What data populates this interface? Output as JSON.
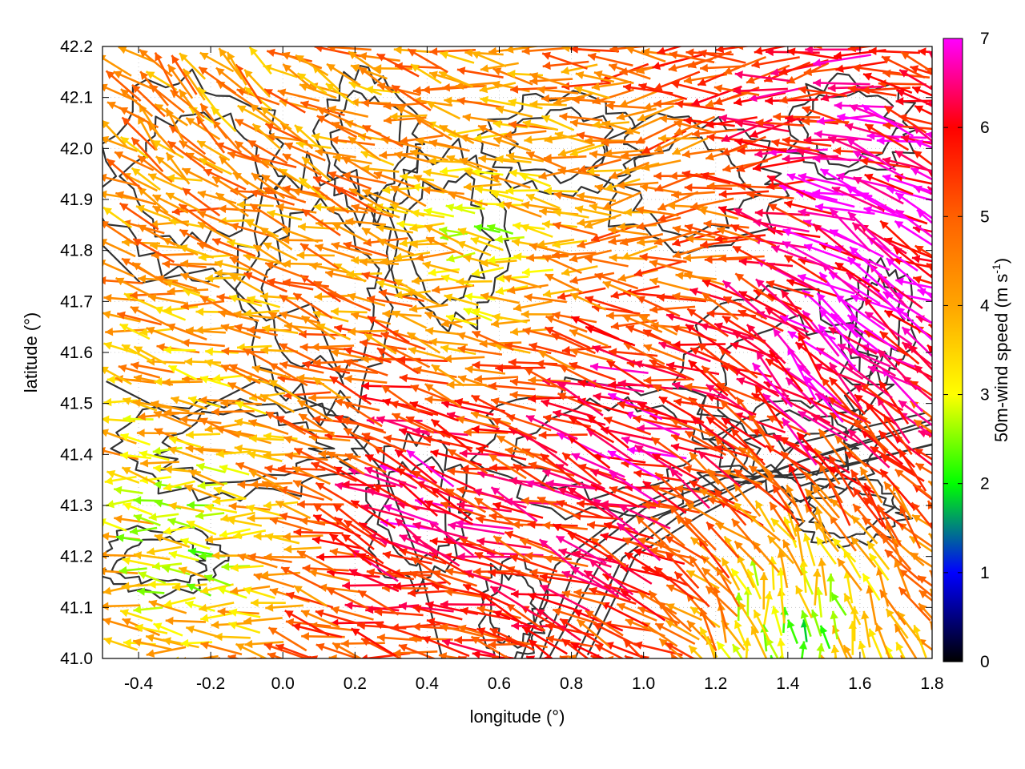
{
  "chart_data": {
    "type": "vector-field",
    "xlabel": "longitude (°)",
    "ylabel": "latitude (°)",
    "xlim": [
      -0.5,
      1.8
    ],
    "ylim": [
      41.0,
      42.2
    ],
    "xticks": [
      "-0.4",
      "-0.2",
      "0.0",
      "0.2",
      "0.4",
      "0.6",
      "0.8",
      "1.0",
      "1.2",
      "1.4",
      "1.6",
      "1.8"
    ],
    "xtick_values": [
      -0.4,
      -0.2,
      0.0,
      0.2,
      0.4,
      0.6,
      0.8,
      1.0,
      1.2,
      1.4,
      1.6,
      1.8
    ],
    "yticks": [
      "41.0",
      "41.1",
      "41.2",
      "41.3",
      "41.4",
      "41.5",
      "41.6",
      "41.7",
      "41.8",
      "41.9",
      "42.0",
      "42.1",
      "42.2"
    ],
    "ytick_values": [
      41.0,
      41.1,
      41.2,
      41.3,
      41.4,
      41.5,
      41.6,
      41.7,
      41.8,
      41.9,
      42.0,
      42.1,
      42.2
    ],
    "grid": true,
    "colorbar": {
      "label": "50m-wind speed (m s",
      "label_sup": "-1",
      "label_end": ")",
      "range": [
        0,
        7
      ],
      "ticks": [
        "0",
        "1",
        "2",
        "3",
        "4",
        "5",
        "6",
        "7"
      ],
      "tick_values": [
        0,
        1,
        2,
        3,
        4,
        5,
        6,
        7
      ],
      "colormap": [
        {
          "value": 0,
          "color": "#000000"
        },
        {
          "value": 1,
          "color": "#0000ff"
        },
        {
          "value": 1.5,
          "color": "#008080"
        },
        {
          "value": 2,
          "color": "#00ff00"
        },
        {
          "value": 3,
          "color": "#ffff00"
        },
        {
          "value": 4,
          "color": "#ffa500"
        },
        {
          "value": 5,
          "color": "#ff6000"
        },
        {
          "value": 6,
          "color": "#ff0000"
        },
        {
          "value": 7,
          "color": "#ff00ff"
        }
      ]
    },
    "wind_regions": [
      {
        "lon": -0.3,
        "lat": 41.85,
        "u_speed": 4.5,
        "direction_deg_from_east": 172
      },
      {
        "lon": -0.3,
        "lat": 41.5,
        "u_speed": 3.8,
        "direction_deg_from_east": 175
      },
      {
        "lon": -0.3,
        "lat": 41.25,
        "u_speed": 2.5,
        "direction_deg_from_east": 178
      },
      {
        "lon": -0.3,
        "lat": 42.1,
        "u_speed": 4.2,
        "direction_deg_from_east": 120
      },
      {
        "lon": 0.3,
        "lat": 41.3,
        "u_speed": 7.0,
        "direction_deg_from_east": 150
      },
      {
        "lon": 0.85,
        "lat": 41.45,
        "u_speed": 7.0,
        "direction_deg_from_east": 160
      },
      {
        "lon": 1.4,
        "lat": 41.65,
        "u_speed": 7.0,
        "direction_deg_from_east": 130
      },
      {
        "lon": 1.55,
        "lat": 41.85,
        "u_speed": 7.0,
        "direction_deg_from_east": 150
      },
      {
        "lon": 1.3,
        "lat": 42.1,
        "u_speed": 6.0,
        "direction_deg_from_east": 200
      },
      {
        "lon": 1.4,
        "lat": 41.1,
        "u_speed": 2.2,
        "direction_deg_from_east": 90
      },
      {
        "lon": 0.3,
        "lat": 41.05,
        "u_speed": 5.5,
        "direction_deg_from_east": 172
      },
      {
        "lon": 0.55,
        "lat": 41.8,
        "u_speed": 2.5,
        "direction_deg_from_east": 180
      },
      {
        "lon": 1.0,
        "lat": 41.9,
        "u_speed": 4.2,
        "direction_deg_from_east": 195
      }
    ]
  }
}
